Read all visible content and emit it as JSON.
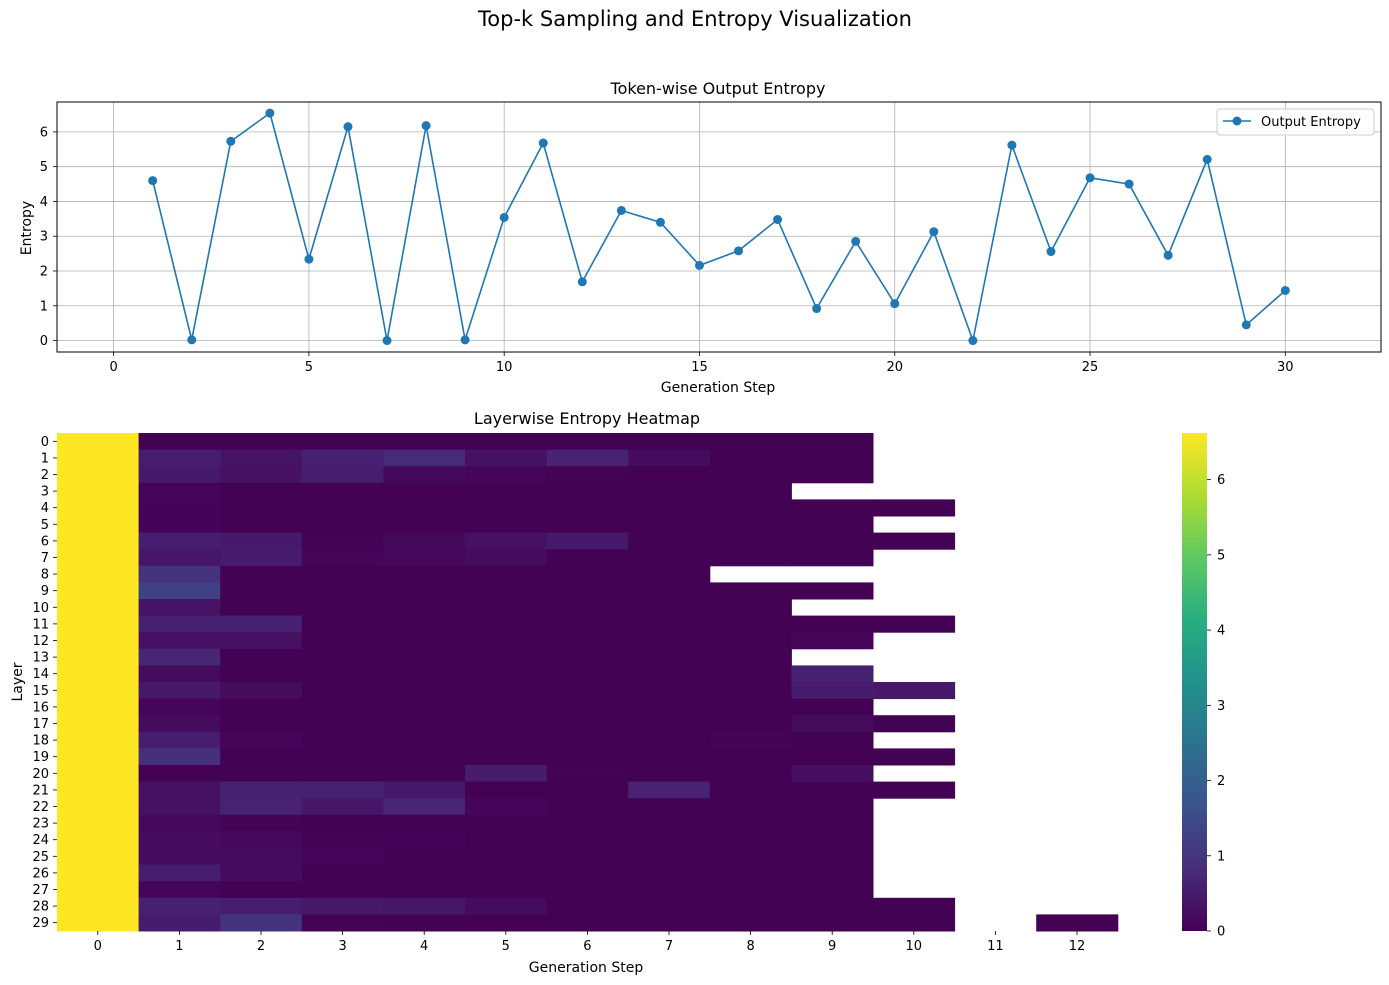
{
  "figure": {
    "title": "Top-k Sampling and Entropy Visualization"
  },
  "chart_data": [
    {
      "type": "line",
      "title": "Token-wise Output Entropy",
      "xlabel": "Generation Step",
      "ylabel": "Entropy",
      "xlim": [
        -1.45,
        32.45
      ],
      "ylim": [
        -0.33,
        6.86
      ],
      "xticks": [
        0,
        5,
        10,
        15,
        20,
        25,
        30
      ],
      "yticks": [
        0,
        1,
        2,
        3,
        4,
        5,
        6
      ],
      "grid": true,
      "legend_position": "upper-right",
      "color": "#1f77b4",
      "series": [
        {
          "name": "Output Entropy",
          "x": [
            1,
            2,
            3,
            4,
            5,
            6,
            7,
            8,
            9,
            10,
            11,
            12,
            13,
            14,
            15,
            16,
            17,
            18,
            19,
            20,
            21,
            22,
            23,
            24,
            25,
            26,
            27,
            28,
            29,
            30
          ],
          "y": [
            4.6,
            0.02,
            5.73,
            6.54,
            2.34,
            6.15,
            0.0,
            6.18,
            0.02,
            3.54,
            5.68,
            1.69,
            3.74,
            3.4,
            2.16,
            2.58,
            3.48,
            0.92,
            2.85,
            1.06,
            3.13,
            0.0,
            5.62,
            2.56,
            4.68,
            4.5,
            2.45,
            5.21,
            0.45,
            1.44
          ]
        }
      ]
    },
    {
      "type": "heatmap",
      "title": "Layerwise Entropy Heatmap",
      "xlabel": "Generation Step",
      "ylabel": "Layer",
      "colormap": "viridis",
      "vmin": 0,
      "vmax": 6.62,
      "colorbar_ticks": [
        0,
        1,
        2,
        3,
        4,
        5,
        6
      ],
      "x_categories": [
        0,
        1,
        2,
        3,
        4,
        5,
        6,
        7,
        8,
        9,
        10,
        11,
        12
      ],
      "y_categories": [
        0,
        1,
        2,
        3,
        4,
        5,
        6,
        7,
        8,
        9,
        10,
        11,
        12,
        13,
        14,
        15,
        16,
        17,
        18,
        19,
        20,
        21,
        22,
        23,
        24,
        25,
        26,
        27,
        28,
        29
      ],
      "values": [
        [
          6.62,
          0.02,
          0.02,
          0.02,
          0.02,
          0.02,
          0.02,
          0.02,
          0.02,
          0.02,
          null,
          null,
          null
        ],
        [
          6.62,
          0.55,
          0.35,
          0.6,
          0.8,
          0.3,
          0.65,
          0.2,
          0.02,
          0.02,
          null,
          null,
          null
        ],
        [
          6.62,
          0.45,
          0.3,
          0.55,
          0.15,
          0.1,
          0.05,
          0.02,
          0.02,
          0.02,
          null,
          null,
          null
        ],
        [
          6.62,
          0.1,
          0.02,
          0.02,
          0.02,
          0.02,
          0.02,
          0.02,
          0.02,
          null,
          null,
          null,
          null
        ],
        [
          6.62,
          0.08,
          0.02,
          0.02,
          0.02,
          0.02,
          0.02,
          0.02,
          0.02,
          0.02,
          0.02,
          null,
          null
        ],
        [
          6.62,
          0.06,
          0.02,
          0.02,
          0.02,
          0.02,
          0.02,
          0.02,
          0.02,
          0.02,
          null,
          null,
          null
        ],
        [
          6.62,
          0.55,
          0.45,
          0.05,
          0.15,
          0.3,
          0.45,
          0.02,
          0.02,
          0.02,
          0.02,
          null,
          null
        ],
        [
          6.62,
          0.4,
          0.5,
          0.1,
          0.15,
          0.2,
          0.02,
          0.02,
          0.02,
          0.02,
          null,
          null,
          null
        ],
        [
          6.62,
          0.95,
          0.02,
          0.02,
          0.02,
          0.02,
          0.02,
          0.02,
          null,
          null,
          null,
          null,
          null
        ],
        [
          6.62,
          1.3,
          0.02,
          0.02,
          0.02,
          0.02,
          0.02,
          0.02,
          0.02,
          0.02,
          null,
          null,
          null
        ],
        [
          6.62,
          0.35,
          0.02,
          0.02,
          0.02,
          0.02,
          0.02,
          0.02,
          0.02,
          null,
          null,
          null,
          null
        ],
        [
          6.62,
          0.6,
          0.6,
          0.02,
          0.02,
          0.02,
          0.02,
          0.02,
          0.02,
          0.02,
          0.02,
          null,
          null
        ],
        [
          6.62,
          0.3,
          0.3,
          0.02,
          0.02,
          0.02,
          0.02,
          0.02,
          0.02,
          0.1,
          null,
          null,
          null
        ],
        [
          6.62,
          0.7,
          0.02,
          0.02,
          0.02,
          0.02,
          0.02,
          0.02,
          0.02,
          null,
          null,
          null,
          null
        ],
        [
          6.62,
          0.2,
          0.02,
          0.02,
          0.02,
          0.02,
          0.02,
          0.02,
          0.02,
          0.6,
          null,
          null,
          null
        ],
        [
          6.62,
          0.45,
          0.2,
          0.02,
          0.02,
          0.02,
          0.02,
          0.02,
          0.02,
          0.5,
          0.45,
          null,
          null
        ],
        [
          6.62,
          0.1,
          0.02,
          0.02,
          0.02,
          0.02,
          0.02,
          0.02,
          0.02,
          0.02,
          null,
          null,
          null
        ],
        [
          6.62,
          0.2,
          0.02,
          0.02,
          0.02,
          0.02,
          0.02,
          0.02,
          0.02,
          0.2,
          0.02,
          null,
          null
        ],
        [
          6.62,
          0.55,
          0.1,
          0.02,
          0.02,
          0.02,
          0.02,
          0.02,
          0.08,
          0.02,
          null,
          null,
          null
        ],
        [
          6.62,
          0.9,
          0.02,
          0.02,
          0.02,
          0.02,
          0.02,
          0.02,
          0.02,
          0.02,
          0.02,
          null,
          null
        ],
        [
          6.62,
          0.02,
          0.02,
          0.02,
          0.02,
          0.5,
          0.05,
          0.02,
          0.02,
          0.25,
          null,
          null,
          null
        ],
        [
          6.62,
          0.3,
          0.6,
          0.6,
          0.45,
          0.02,
          0.02,
          0.65,
          0.02,
          0.02,
          0.02,
          null,
          null
        ],
        [
          6.62,
          0.3,
          0.65,
          0.4,
          0.7,
          0.1,
          0.02,
          0.02,
          0.02,
          0.02,
          null,
          null,
          null
        ],
        [
          6.62,
          0.15,
          0.05,
          0.02,
          0.02,
          0.02,
          0.02,
          0.02,
          0.02,
          0.02,
          null,
          null,
          null
        ],
        [
          6.62,
          0.2,
          0.15,
          0.05,
          0.08,
          0.02,
          0.02,
          0.02,
          0.02,
          0.02,
          null,
          null,
          null
        ],
        [
          6.62,
          0.2,
          0.2,
          0.1,
          0.02,
          0.02,
          0.02,
          0.02,
          0.02,
          0.02,
          null,
          null,
          null
        ],
        [
          6.62,
          0.55,
          0.2,
          0.02,
          0.02,
          0.02,
          0.02,
          0.02,
          0.02,
          0.02,
          null,
          null,
          null
        ],
        [
          6.62,
          0.1,
          0.02,
          0.02,
          0.02,
          0.02,
          0.02,
          0.02,
          0.02,
          0.02,
          null,
          null,
          null
        ],
        [
          6.62,
          0.6,
          0.55,
          0.45,
          0.4,
          0.2,
          0.02,
          0.02,
          0.02,
          0.02,
          0.02,
          null,
          null
        ],
        [
          6.62,
          0.5,
          1.0,
          0.05,
          0.02,
          0.02,
          0.02,
          0.02,
          0.02,
          0.02,
          0.02,
          null,
          0.02
        ]
      ]
    }
  ]
}
